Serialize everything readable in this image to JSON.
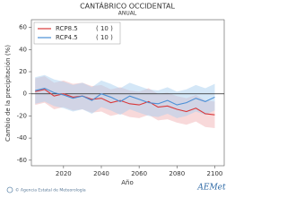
{
  "chart_data": {
    "type": "line",
    "title": "CANTÁBRICO OCCIDENTAL",
    "subtitle": "ANUAL",
    "x_label": "Año",
    "y_label": "Cambio de la precipitación (%)",
    "x": [
      2005,
      2010,
      2015,
      2020,
      2025,
      2030,
      2035,
      2040,
      2045,
      2050,
      2055,
      2060,
      2065,
      2070,
      2075,
      2080,
      2085,
      2090,
      2095,
      2100
    ],
    "series": [
      {
        "name": "RCP8.5",
        "members": "( 10 )",
        "color": "#d9383a",
        "band_color": "#f2b3b5",
        "values": [
          2,
          4,
          -2,
          0,
          -3,
          -2,
          -5,
          -4,
          -8,
          -6,
          -9,
          -10,
          -7,
          -12,
          -11,
          -14,
          -16,
          -13,
          -18,
          -19
        ],
        "upper": [
          14,
          16,
          10,
          12,
          9,
          10,
          7,
          8,
          4,
          6,
          3,
          2,
          5,
          0,
          1,
          -2,
          -4,
          -1,
          -6,
          -7
        ],
        "lower": [
          -10,
          -8,
          -14,
          -12,
          -15,
          -14,
          -17,
          -16,
          -20,
          -18,
          -21,
          -22,
          -19,
          -24,
          -23,
          -26,
          -28,
          -25,
          -30,
          -31
        ]
      },
      {
        "name": "RCP4.5",
        "members": "( 10 )",
        "color": "#4a8fd6",
        "band_color": "#a9d0ef",
        "values": [
          3,
          5,
          1,
          -1,
          -4,
          -2,
          -6,
          0,
          -3,
          -7,
          -2,
          -5,
          -8,
          -9,
          -6,
          -10,
          -8,
          -4,
          -7,
          -3
        ],
        "upper": [
          15,
          17,
          13,
          11,
          8,
          10,
          6,
          12,
          9,
          5,
          10,
          7,
          4,
          3,
          6,
          2,
          4,
          8,
          5,
          9
        ],
        "lower": [
          -9,
          -7,
          -11,
          -13,
          -16,
          -14,
          -18,
          -12,
          -15,
          -19,
          -14,
          -17,
          -20,
          -21,
          -18,
          -22,
          -20,
          -16,
          -19,
          -15
        ]
      }
    ],
    "xlim": [
      2003,
      2105
    ],
    "xticks": [
      2020,
      2040,
      2060,
      2080,
      2100
    ],
    "ylim": [
      -65,
      67
    ],
    "yticks": [
      -60,
      -40,
      -20,
      0,
      20,
      40,
      60
    ],
    "reference_line": 0,
    "legend": "upper left",
    "footer": "© Agencia Estatal de Meteorología",
    "logo": "AEMet"
  }
}
